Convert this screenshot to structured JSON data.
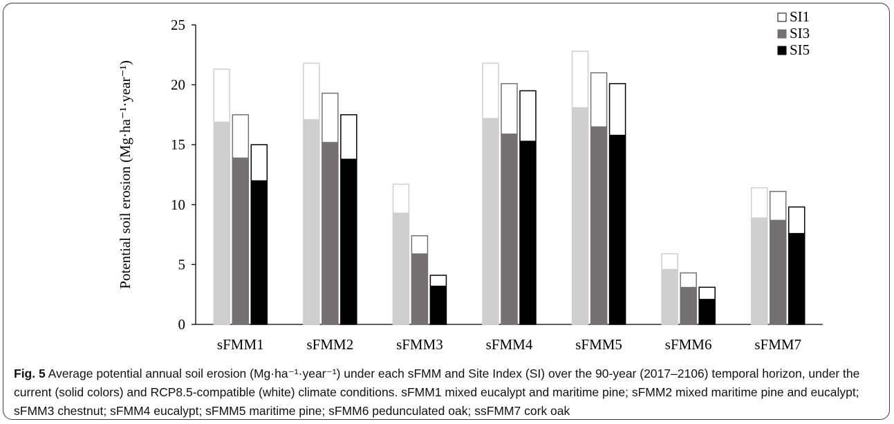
{
  "chart_data": {
    "type": "bar",
    "title": "",
    "xlabel": "",
    "ylabel": "Potential soil erosion (Mg·ha⁻¹·year⁻¹)",
    "ylim": [
      0,
      25
    ],
    "yticks": [
      0,
      5,
      10,
      15,
      20,
      25
    ],
    "categories": [
      "sFMM1",
      "sFMM2",
      "sFMM3",
      "sFMM4",
      "sFMM5",
      "sFMM6",
      "sFMM7"
    ],
    "stacked_layers": [
      "current climate (solid colors)",
      "RCP8.5-compatible climate (white)"
    ],
    "series": [
      {
        "name": "SI1",
        "color": "#cfcfcf",
        "current": [
          16.9,
          17.1,
          9.3,
          17.2,
          18.1,
          4.6,
          8.9
        ],
        "rcp85": [
          21.3,
          21.8,
          11.7,
          21.8,
          22.8,
          5.9,
          11.4
        ]
      },
      {
        "name": "SI3",
        "color": "#767171",
        "current": [
          13.9,
          15.2,
          5.9,
          15.9,
          16.5,
          3.1,
          8.7
        ],
        "rcp85": [
          17.5,
          19.3,
          7.4,
          20.1,
          21.0,
          4.3,
          11.1
        ]
      },
      {
        "name": "SI5",
        "color": "#000000",
        "current": [
          12.0,
          13.8,
          3.2,
          15.3,
          15.8,
          2.1,
          7.6
        ],
        "rcp85": [
          15.0,
          17.5,
          4.1,
          19.5,
          20.1,
          3.1,
          9.8
        ]
      }
    ],
    "legend": {
      "position": "top-right",
      "entries": [
        "SI1",
        "SI3",
        "SI5"
      ]
    },
    "grid": false
  },
  "caption": {
    "label": "Fig. 5",
    "text": " Average potential annual soil erosion (Mg·ha⁻¹·year⁻¹) under each sFMM and Site Index (SI) over the 90-year (2017–2106) temporal horizon, under the current (solid colors) and RCP8.5-compatible (white) climate conditions. sFMM1 mixed eucalypt and maritime pine; sFMM2 mixed maritime pine and eucalypt; sFMM3 chestnut; sFMM4 eucalypt; sFMM5 maritime pine; sFMM6 pedunculated oak; ssFMM7 cork oak"
  }
}
